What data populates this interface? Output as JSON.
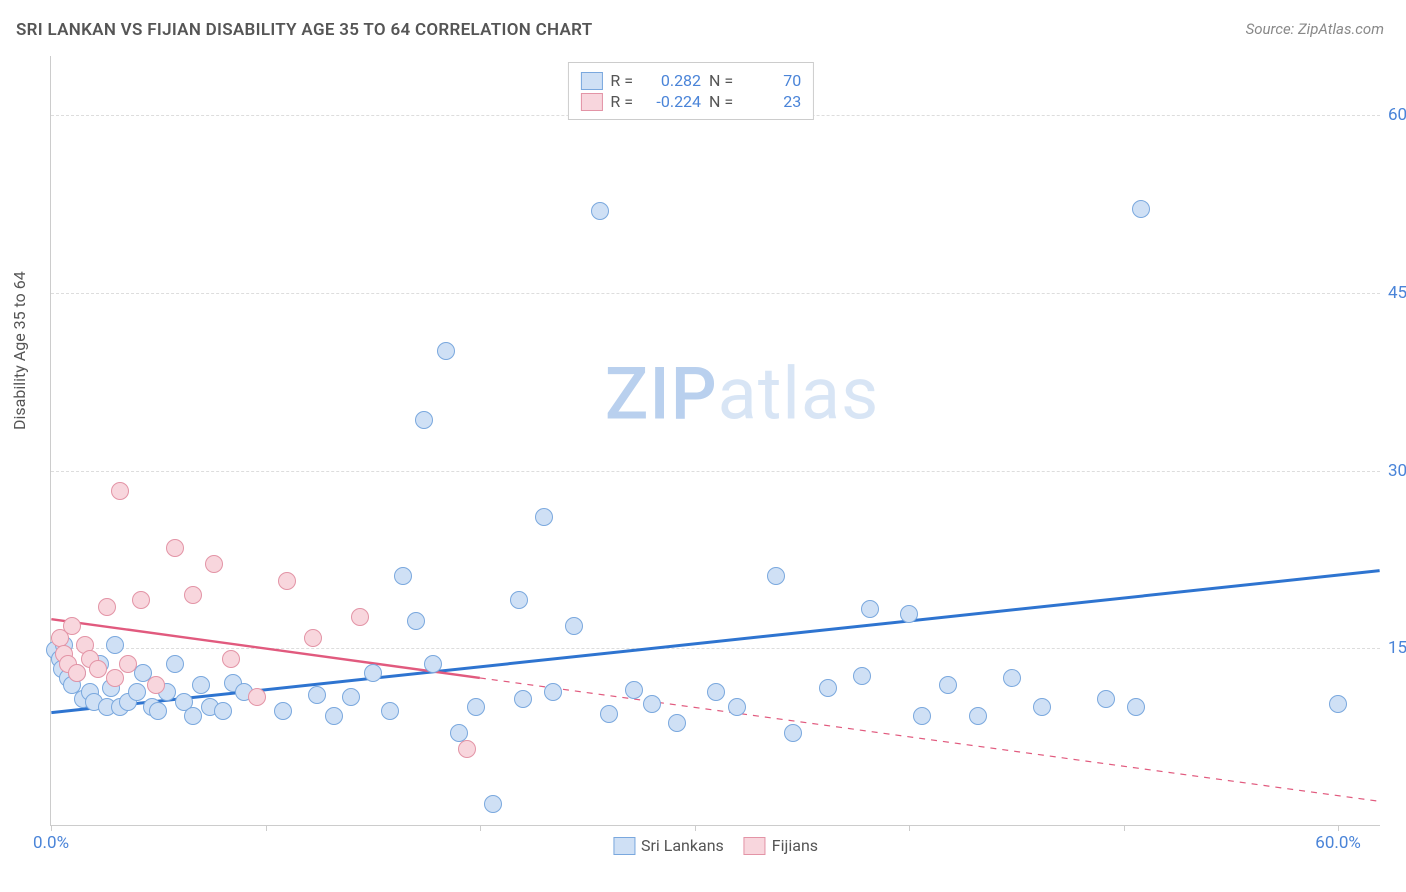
{
  "title": "SRI LANKAN VS FIJIAN DISABILITY AGE 35 TO 64 CORRELATION CHART",
  "source": "Source: ZipAtlas.com",
  "ylabel": "Disability Age 35 to 64",
  "watermark_zip": "ZIP",
  "watermark_atlas": "atlas",
  "chart": {
    "type": "scatter",
    "xlim": [
      0,
      62
    ],
    "ylim": [
      0,
      65
    ],
    "yticks": [
      15,
      30,
      45,
      60
    ],
    "ytick_labels": [
      "15.0%",
      "30.0%",
      "45.0%",
      "60.0%"
    ],
    "xticks": [
      0,
      10,
      20,
      30,
      40,
      50,
      60
    ],
    "xtick_labels": {
      "0": "0.0%",
      "60": "60.0%"
    },
    "grid_color": "#dddddd",
    "axis_color": "#cccccc",
    "background_color": "#ffffff",
    "marker_radius": 9,
    "marker_stroke_width": 1.2,
    "series": [
      {
        "name": "Sri Lankans",
        "fill": "#cfe0f5",
        "stroke": "#7aa8de",
        "R": "0.282",
        "N": "70",
        "trend": {
          "x1": 0,
          "y1": 9.5,
          "x2": 62,
          "y2": 21.5,
          "solid_to_x": 62,
          "color": "#2e74d0",
          "width": 3
        },
        "points": [
          [
            0.2,
            14.8
          ],
          [
            0.4,
            14.0
          ],
          [
            0.5,
            13.2
          ],
          [
            0.6,
            15.2
          ],
          [
            0.8,
            12.4
          ],
          [
            1.0,
            11.8
          ],
          [
            1.2,
            12.8
          ],
          [
            1.5,
            10.6
          ],
          [
            1.8,
            11.2
          ],
          [
            2.0,
            10.4
          ],
          [
            2.3,
            13.6
          ],
          [
            2.6,
            10.0
          ],
          [
            2.8,
            11.6
          ],
          [
            3.0,
            15.2
          ],
          [
            3.2,
            10.0
          ],
          [
            3.6,
            10.4
          ],
          [
            4.0,
            11.2
          ],
          [
            4.3,
            12.8
          ],
          [
            4.7,
            10.0
          ],
          [
            5.0,
            9.6
          ],
          [
            5.4,
            11.2
          ],
          [
            5.8,
            13.6
          ],
          [
            6.2,
            10.4
          ],
          [
            6.6,
            9.2
          ],
          [
            7.0,
            11.8
          ],
          [
            7.4,
            10.0
          ],
          [
            8.0,
            9.6
          ],
          [
            8.5,
            12.0
          ],
          [
            9.0,
            11.2
          ],
          [
            10.8,
            9.6
          ],
          [
            12.4,
            11.0
          ],
          [
            13.2,
            9.2
          ],
          [
            14.0,
            10.8
          ],
          [
            15.0,
            12.8
          ],
          [
            15.8,
            9.6
          ],
          [
            16.4,
            21.0
          ],
          [
            17.0,
            17.2
          ],
          [
            17.4,
            34.2
          ],
          [
            17.8,
            13.6
          ],
          [
            18.4,
            40.0
          ],
          [
            19.0,
            7.8
          ],
          [
            19.8,
            10.0
          ],
          [
            20.6,
            1.8
          ],
          [
            21.8,
            19.0
          ],
          [
            22.0,
            10.6
          ],
          [
            23.0,
            26.0
          ],
          [
            23.4,
            11.2
          ],
          [
            24.4,
            16.8
          ],
          [
            25.6,
            51.8
          ],
          [
            26.0,
            9.4
          ],
          [
            27.2,
            11.4
          ],
          [
            28.0,
            10.2
          ],
          [
            29.2,
            8.6
          ],
          [
            31.0,
            11.2
          ],
          [
            32.0,
            10.0
          ],
          [
            33.8,
            21.0
          ],
          [
            34.6,
            7.8
          ],
          [
            36.2,
            11.6
          ],
          [
            37.8,
            12.6
          ],
          [
            38.2,
            18.2
          ],
          [
            40.0,
            17.8
          ],
          [
            40.6,
            9.2
          ],
          [
            41.8,
            11.8
          ],
          [
            43.2,
            9.2
          ],
          [
            44.8,
            12.4
          ],
          [
            46.2,
            10.0
          ],
          [
            49.2,
            10.6
          ],
          [
            50.6,
            10.0
          ],
          [
            50.8,
            52.0
          ],
          [
            60.0,
            10.2
          ]
        ]
      },
      {
        "name": "Fijians",
        "fill": "#f8d6dd",
        "stroke": "#e394a6",
        "R": "-0.224",
        "N": "23",
        "trend": {
          "x1": 0,
          "y1": 17.4,
          "x2": 62,
          "y2": 2.0,
          "solid_to_x": 20,
          "color": "#e15a7e",
          "width": 2.4,
          "dash": "6 6"
        },
        "points": [
          [
            0.4,
            15.8
          ],
          [
            0.6,
            14.4
          ],
          [
            0.8,
            13.6
          ],
          [
            1.0,
            16.8
          ],
          [
            1.2,
            12.8
          ],
          [
            1.6,
            15.2
          ],
          [
            1.8,
            14.0
          ],
          [
            2.2,
            13.2
          ],
          [
            2.6,
            18.4
          ],
          [
            3.0,
            12.4
          ],
          [
            3.2,
            28.2
          ],
          [
            3.6,
            13.6
          ],
          [
            4.2,
            19.0
          ],
          [
            4.9,
            11.8
          ],
          [
            5.8,
            23.4
          ],
          [
            6.6,
            19.4
          ],
          [
            7.6,
            22.0
          ],
          [
            8.4,
            14.0
          ],
          [
            9.6,
            10.8
          ],
          [
            11.0,
            20.6
          ],
          [
            12.2,
            15.8
          ],
          [
            14.4,
            17.6
          ],
          [
            19.4,
            6.4
          ]
        ]
      }
    ],
    "legend_top": [
      {
        "swatch_fill": "#cfe0f5",
        "swatch_stroke": "#7aa8de",
        "r_label": "R =",
        "r_val": "0.282",
        "n_label": "N =",
        "n_val": "70"
      },
      {
        "swatch_fill": "#f8d6dd",
        "swatch_stroke": "#e394a6",
        "r_label": "R =",
        "r_val": "-0.224",
        "n_label": "N =",
        "n_val": "23"
      }
    ],
    "legend_bottom": [
      {
        "swatch_fill": "#cfe0f5",
        "swatch_stroke": "#7aa8de",
        "label": "Sri Lankans"
      },
      {
        "swatch_fill": "#f8d6dd",
        "swatch_stroke": "#e394a6",
        "label": "Fijians"
      }
    ]
  }
}
